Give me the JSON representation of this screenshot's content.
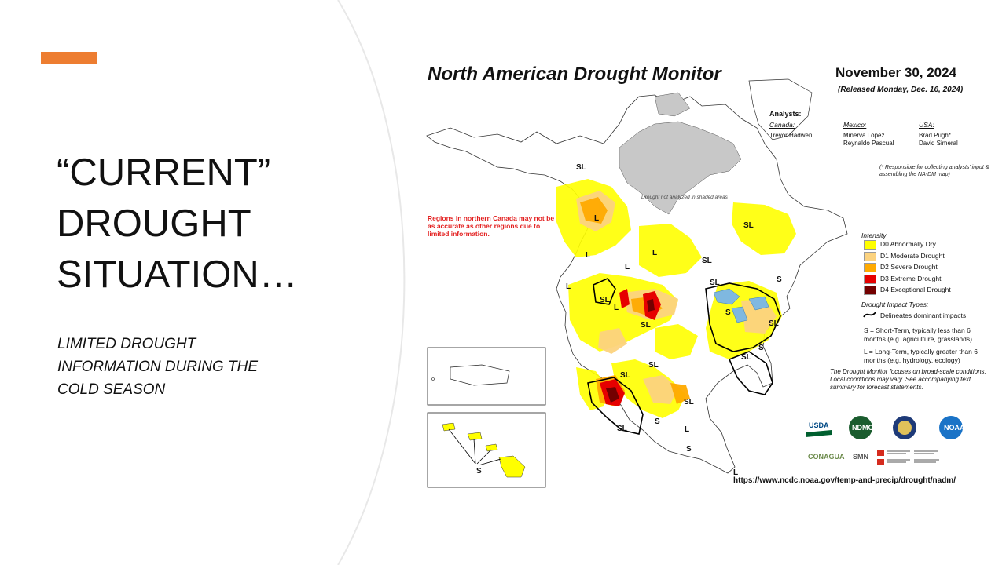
{
  "slide": {
    "title_lines": [
      "“CURRENT”",
      "DROUGHT",
      "SITUATION…"
    ],
    "subtitle_lines": [
      "LIMITED DROUGHT",
      "INFORMATION DURING THE",
      "COLD SEASON"
    ],
    "accent_color": "#ED7D31"
  },
  "map": {
    "title": "North American Drought Monitor",
    "date": "November 30, 2024",
    "released": "(Released Monday, Dec. 16, 2024)",
    "analysts_heading": "Analysts:",
    "analysts": [
      {
        "country": "Canada:",
        "names": [
          "Trevor Hadwen"
        ]
      },
      {
        "country": "Mexico:",
        "names": [
          "Minerva Lopez",
          "Reynaldo Pascual"
        ]
      },
      {
        "country": "USA:",
        "names": [
          "Brad Pugh*",
          "David Simeral"
        ]
      }
    ],
    "responsible_note": "(* Responsible for collecting analysts' input & assembling the NA-DM map)",
    "northern_canada_note": "Regions in northern Canada may not be as accurate as other regions due to limited information.",
    "not_analyzed_note": "Drought not analyzed in shaded areas",
    "legend": {
      "heading": "Intensity",
      "items": [
        {
          "code": "D0",
          "label": "D0 Abnormally Dry",
          "color": "#FFFF00"
        },
        {
          "code": "D1",
          "label": "D1 Moderate Drought",
          "color": "#FCD37F"
        },
        {
          "code": "D2",
          "label": "D2 Severe Drought",
          "color": "#FFAA00"
        },
        {
          "code": "D3",
          "label": "D3 Extreme Drought",
          "color": "#E60000"
        },
        {
          "code": "D4",
          "label": "D4 Exceptional Drought",
          "color": "#730000"
        }
      ]
    },
    "impact": {
      "heading": "Drought Impact Types:",
      "delineates": "Delineates dominant impacts",
      "short_term": "S = Short-Term, typically less than 6 months (e.g. agriculture, grasslands)",
      "long_term": "L = Long-Term, typically greater than 6 months (e.g. hydrology, ecology)"
    },
    "focus_note": "The Drought Monitor focuses on broad-scale conditions. Local conditions may vary. See accompanying text summary for forecast statements.",
    "logos": [
      "USDA",
      "NDMC",
      "NOAA",
      "CONAGUA",
      "SMN"
    ],
    "url": "https://www.ncdc.noaa.gov/temp-and-precip/drought/nadm/",
    "map_labels": [
      {
        "text": "SL"
      },
      {
        "text": "L"
      },
      {
        "text": "L"
      },
      {
        "text": "L"
      },
      {
        "text": "L"
      },
      {
        "text": "SL"
      },
      {
        "text": "SL"
      },
      {
        "text": "SL"
      },
      {
        "text": "S"
      },
      {
        "text": "L"
      },
      {
        "text": "SL"
      },
      {
        "text": "SL"
      },
      {
        "text": "L"
      },
      {
        "text": "S"
      },
      {
        "text": "SL"
      },
      {
        "text": "SL"
      },
      {
        "text": "SL"
      },
      {
        "text": "S"
      },
      {
        "text": "SL"
      },
      {
        "text": "L"
      },
      {
        "text": "S"
      },
      {
        "text": "SL"
      },
      {
        "text": "SL"
      },
      {
        "text": "S"
      },
      {
        "text": "L"
      }
    ]
  }
}
